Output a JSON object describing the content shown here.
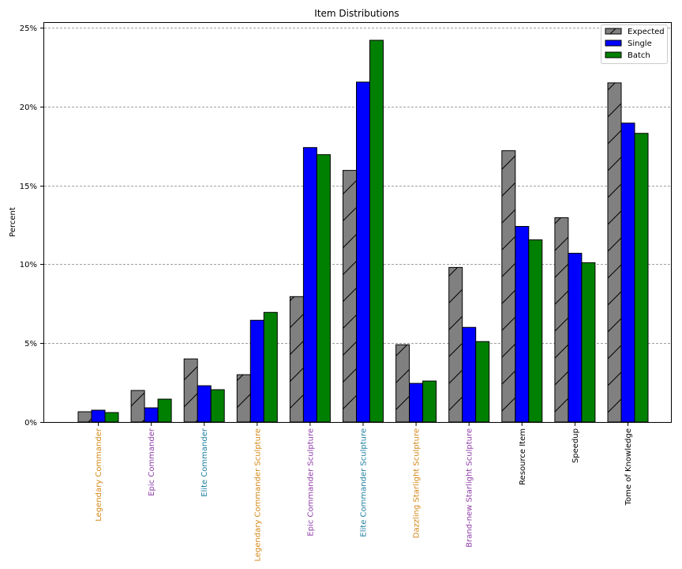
{
  "chart_data": {
    "type": "bar",
    "title": "Item Distributions",
    "xlabel": "",
    "ylabel": "Percent",
    "ylim": [
      0,
      25.3
    ],
    "yticks": [
      0,
      5,
      10,
      15,
      20,
      25
    ],
    "ytick_labels": [
      "0%",
      "5%",
      "10%",
      "15%",
      "20%",
      "25%"
    ],
    "grid": {
      "axis": "y",
      "style": "dashed",
      "color": "#808080"
    },
    "legend_position": "upper right",
    "categories": [
      "Legendary Commander",
      "Epic Commander",
      "Elite Commander",
      "Legendary Commander Sculpture",
      "Epic Commander Sculpture",
      "Elite Commander Sculpture",
      "Dazzling Starlight Sculpture",
      "Brand-new Starlight Sculpture",
      "Resource Item",
      "Speedup",
      "Tome of Knowledge"
    ],
    "category_colors": [
      "#d4891a",
      "#8e3fa8",
      "#1f7fa0",
      "#d4891a",
      "#8e3fa8",
      "#1f7fa0",
      "#d4891a",
      "#8e3fa8",
      "#000000",
      "#000000",
      "#000000"
    ],
    "series": [
      {
        "name": "Expected",
        "color": "#808080",
        "hatch": "/",
        "values": [
          0.65,
          2.0,
          4.0,
          3.0,
          7.95,
          15.95,
          4.9,
          9.8,
          17.2,
          12.95,
          21.5
        ]
      },
      {
        "name": "Single",
        "color": "#0000ff",
        "hatch": "",
        "values": [
          0.75,
          0.9,
          2.3,
          6.45,
          17.4,
          21.55,
          2.45,
          6.0,
          12.4,
          10.7,
          18.95
        ]
      },
      {
        "name": "Batch",
        "color": "#008000",
        "hatch": "",
        "values": [
          0.6,
          1.45,
          2.05,
          6.95,
          16.95,
          24.2,
          2.6,
          5.1,
          11.55,
          10.1,
          18.3
        ]
      }
    ]
  }
}
